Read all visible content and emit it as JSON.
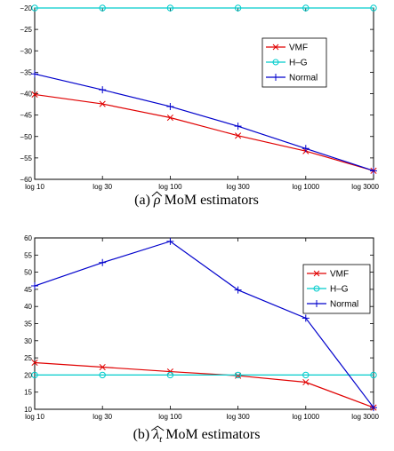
{
  "chart_data": [
    {
      "type": "line",
      "caption": {
        "prefix": "(a)",
        "symbol": "ρ",
        "suffix": "MoM estimators"
      },
      "categories": [
        "log 10",
        "log 30",
        "log 100",
        "log 300",
        "log 1000",
        "log 3000"
      ],
      "ylim": [
        -60,
        -20
      ],
      "yticks": [
        -60,
        -55,
        -50,
        -45,
        -40,
        -35,
        -30,
        -25,
        -20
      ],
      "legend_position": "top-right",
      "grid": false,
      "series": [
        {
          "name": "VMF",
          "color": "#e00000",
          "marker": "x",
          "values": [
            -40.2,
            -42.4,
            -45.6,
            -49.8,
            -53.4,
            -58.0
          ]
        },
        {
          "name": "H–G",
          "color": "#00cccc",
          "marker": "o",
          "values": [
            -20,
            -20,
            -20,
            -20,
            -20,
            -20
          ]
        },
        {
          "name": "Normal",
          "color": "#0000cc",
          "marker": "+",
          "values": [
            -35.4,
            -39.1,
            -43.0,
            -47.6,
            -52.8,
            -58.0
          ]
        }
      ]
    },
    {
      "type": "line",
      "caption": {
        "prefix": "(b)",
        "symbol": "λ",
        "subscript": "t",
        "suffix": "MoM estimators"
      },
      "categories": [
        "log 10",
        "log 30",
        "log 100",
        "log 300",
        "log 1000",
        "log 3000"
      ],
      "ylim": [
        10,
        60
      ],
      "yticks": [
        10,
        15,
        20,
        25,
        30,
        35,
        40,
        45,
        50,
        55,
        60
      ],
      "legend_position": "top-right",
      "grid": false,
      "series": [
        {
          "name": "VMF",
          "color": "#e00000",
          "marker": "x",
          "values": [
            23.6,
            22.3,
            21.0,
            19.8,
            17.9,
            10.5
          ]
        },
        {
          "name": "H–G",
          "color": "#00cccc",
          "marker": "o",
          "values": [
            20,
            20,
            20,
            20,
            20,
            20
          ]
        },
        {
          "name": "Normal",
          "color": "#0000cc",
          "marker": "+",
          "values": [
            46.0,
            52.8,
            59.0,
            44.8,
            36.6,
            10.5
          ]
        }
      ]
    }
  ]
}
